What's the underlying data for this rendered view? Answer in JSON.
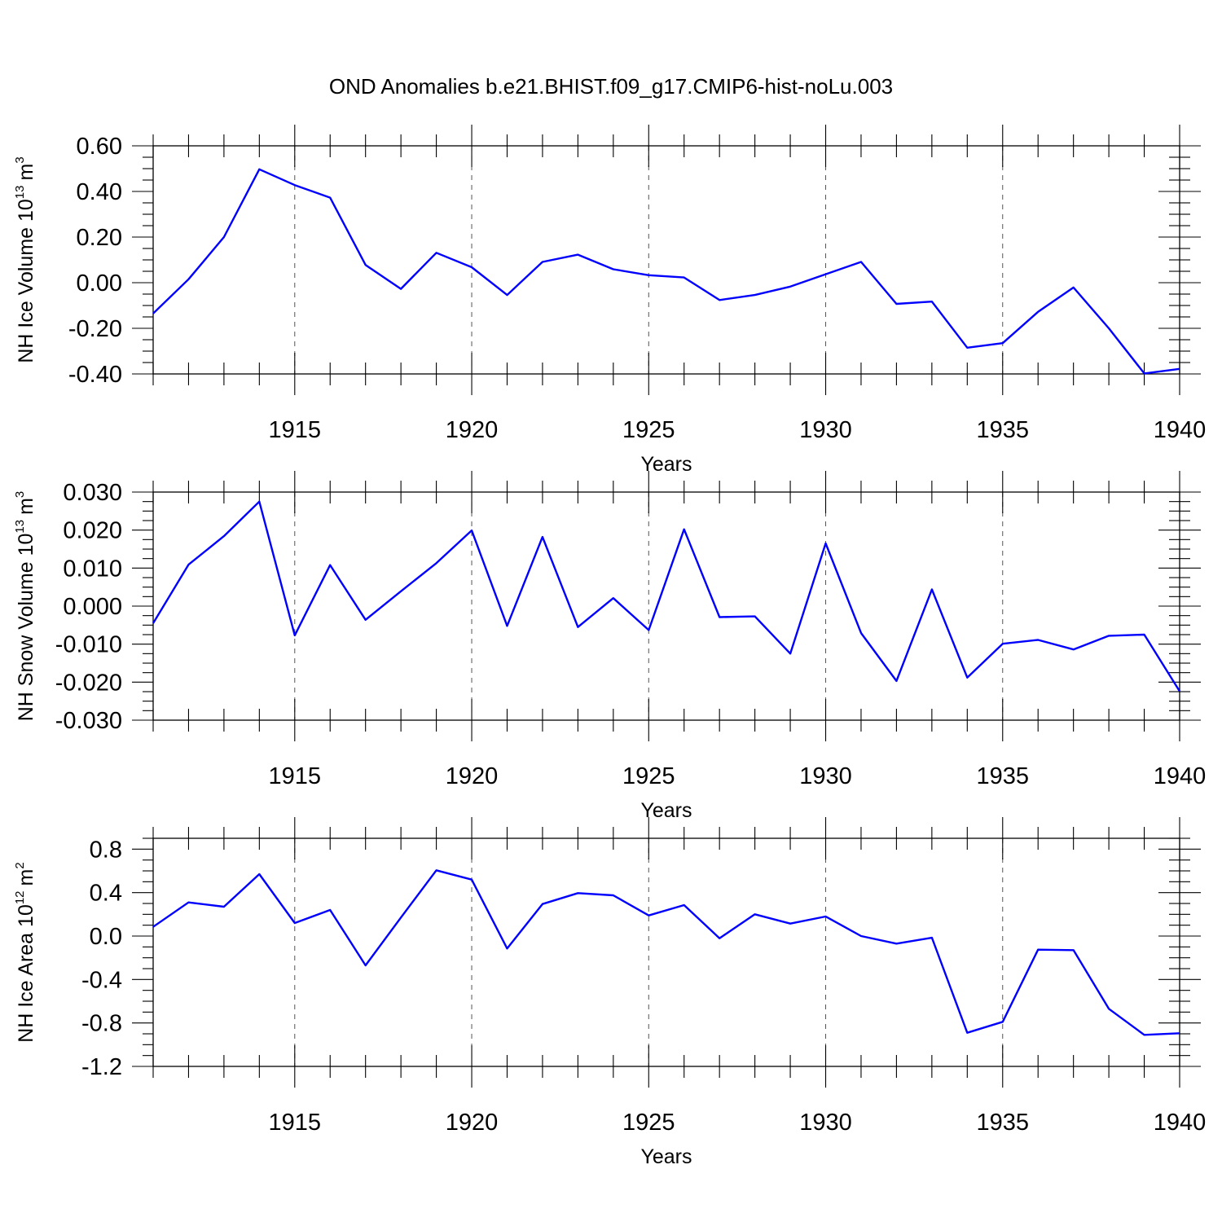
{
  "title": "OND Anomalies b.e21.BHIST.f09_g17.CMIP6-hist-noLu.003",
  "colors": {
    "line": "#0000ff",
    "axis": "#000000"
  },
  "chart_data": [
    {
      "type": "line",
      "ylabel": "NH Ice Volume 10",
      "ylabel_sup": "13",
      "ylabel_unit": "m",
      "ylabel_unit_sup": "3",
      "xlabel": "Years",
      "xlim": [
        1911,
        1940
      ],
      "ylim": [
        -0.4,
        0.6
      ],
      "y_ticks": [
        0.6,
        0.4,
        0.2,
        0.0,
        -0.2,
        -0.4
      ],
      "y_tick_labels": [
        "0.60",
        "0.40",
        "0.20",
        "0.00",
        "-0.20",
        "-0.40"
      ],
      "x_ticks": [
        1915,
        1920,
        1925,
        1930,
        1935,
        1940
      ],
      "x_tick_labels": [
        "1915",
        "1920",
        "1925",
        "1930",
        "1935",
        "1940"
      ],
      "grid": "dashed vertical lines at labeled years",
      "x": [
        1911,
        1912,
        1913,
        1914,
        1915,
        1916,
        1917,
        1918,
        1919,
        1920,
        1921,
        1922,
        1923,
        1924,
        1925,
        1926,
        1927,
        1928,
        1929,
        1930,
        1931,
        1932,
        1933,
        1934,
        1935,
        1936,
        1937,
        1938,
        1939,
        1940
      ],
      "series": [
        {
          "values": [
            -0.135,
            0.015,
            0.2,
            0.497,
            0.428,
            0.373,
            0.078,
            -0.027,
            0.131,
            0.068,
            -0.054,
            0.091,
            0.123,
            0.059,
            0.033,
            0.023,
            -0.076,
            -0.054,
            -0.017,
            0.037,
            0.091,
            -0.093,
            -0.083,
            -0.285,
            -0.265,
            -0.128,
            -0.021,
            -0.2,
            -0.398,
            -0.378
          ]
        }
      ]
    },
    {
      "type": "line",
      "ylabel": "NH Snow Volume 10",
      "ylabel_sup": "13",
      "ylabel_unit": "m",
      "ylabel_unit_sup": "3",
      "xlabel": "Years",
      "xlim": [
        1911,
        1940
      ],
      "ylim": [
        -0.03,
        0.03
      ],
      "y_ticks": [
        0.03,
        0.02,
        0.01,
        0.0,
        -0.01,
        -0.02,
        -0.03
      ],
      "y_tick_labels": [
        "0.030",
        "0.020",
        "0.010",
        "0.000",
        "-0.010",
        "-0.020",
        "-0.030"
      ],
      "x_ticks": [
        1915,
        1920,
        1925,
        1930,
        1935,
        1940
      ],
      "x_tick_labels": [
        "1915",
        "1920",
        "1925",
        "1930",
        "1935",
        "1940"
      ],
      "grid": "dashed vertical lines at labeled years",
      "x": [
        1911,
        1912,
        1913,
        1914,
        1915,
        1916,
        1917,
        1918,
        1919,
        1920,
        1921,
        1922,
        1923,
        1924,
        1925,
        1926,
        1927,
        1928,
        1929,
        1930,
        1931,
        1932,
        1933,
        1934,
        1935,
        1936,
        1937,
        1938,
        1939,
        1940
      ],
      "series": [
        {
          "values": [
            -0.0045,
            0.0109,
            0.0184,
            0.0275,
            -0.0077,
            0.0108,
            -0.0036,
            0.0039,
            0.0113,
            0.0199,
            -0.0052,
            0.0182,
            -0.0055,
            0.0021,
            -0.0063,
            0.0202,
            -0.0029,
            -0.0027,
            -0.0125,
            0.0165,
            -0.0071,
            -0.0197,
            0.0044,
            -0.0188,
            -0.0099,
            -0.0089,
            -0.0114,
            -0.0078,
            -0.0075,
            -0.0224
          ]
        }
      ]
    },
    {
      "type": "line",
      "ylabel": "NH Ice Area 10",
      "ylabel_sup": "12",
      "ylabel_unit": "m",
      "ylabel_unit_sup": "2",
      "xlabel": "Years",
      "xlim": [
        1911,
        1940
      ],
      "ylim": [
        -1.2,
        0.9
      ],
      "y_ticks": [
        0.8,
        0.4,
        0.0,
        -0.4,
        -0.8,
        -1.2
      ],
      "y_tick_labels": [
        "0.8",
        "0.4",
        "0.0",
        "-0.4",
        "-0.8",
        "-1.2"
      ],
      "x_ticks": [
        1915,
        1920,
        1925,
        1930,
        1935,
        1940
      ],
      "x_tick_labels": [
        "1915",
        "1920",
        "1925",
        "1930",
        "1935",
        "1940"
      ],
      "grid": "dashed vertical lines at labeled years",
      "x": [
        1911,
        1912,
        1913,
        1914,
        1915,
        1916,
        1917,
        1918,
        1919,
        1920,
        1921,
        1922,
        1923,
        1924,
        1925,
        1926,
        1927,
        1928,
        1929,
        1930,
        1931,
        1932,
        1933,
        1934,
        1935,
        1936,
        1937,
        1938,
        1939,
        1940
      ],
      "series": [
        {
          "values": [
            0.085,
            0.31,
            0.27,
            0.57,
            0.12,
            0.24,
            -0.27,
            0.17,
            0.605,
            0.52,
            -0.115,
            0.295,
            0.395,
            0.375,
            0.19,
            0.285,
            -0.02,
            0.2,
            0.115,
            0.18,
            0.0,
            -0.07,
            -0.015,
            -0.89,
            -0.79,
            -0.125,
            -0.13,
            -0.67,
            -0.91,
            -0.895
          ]
        }
      ]
    }
  ]
}
